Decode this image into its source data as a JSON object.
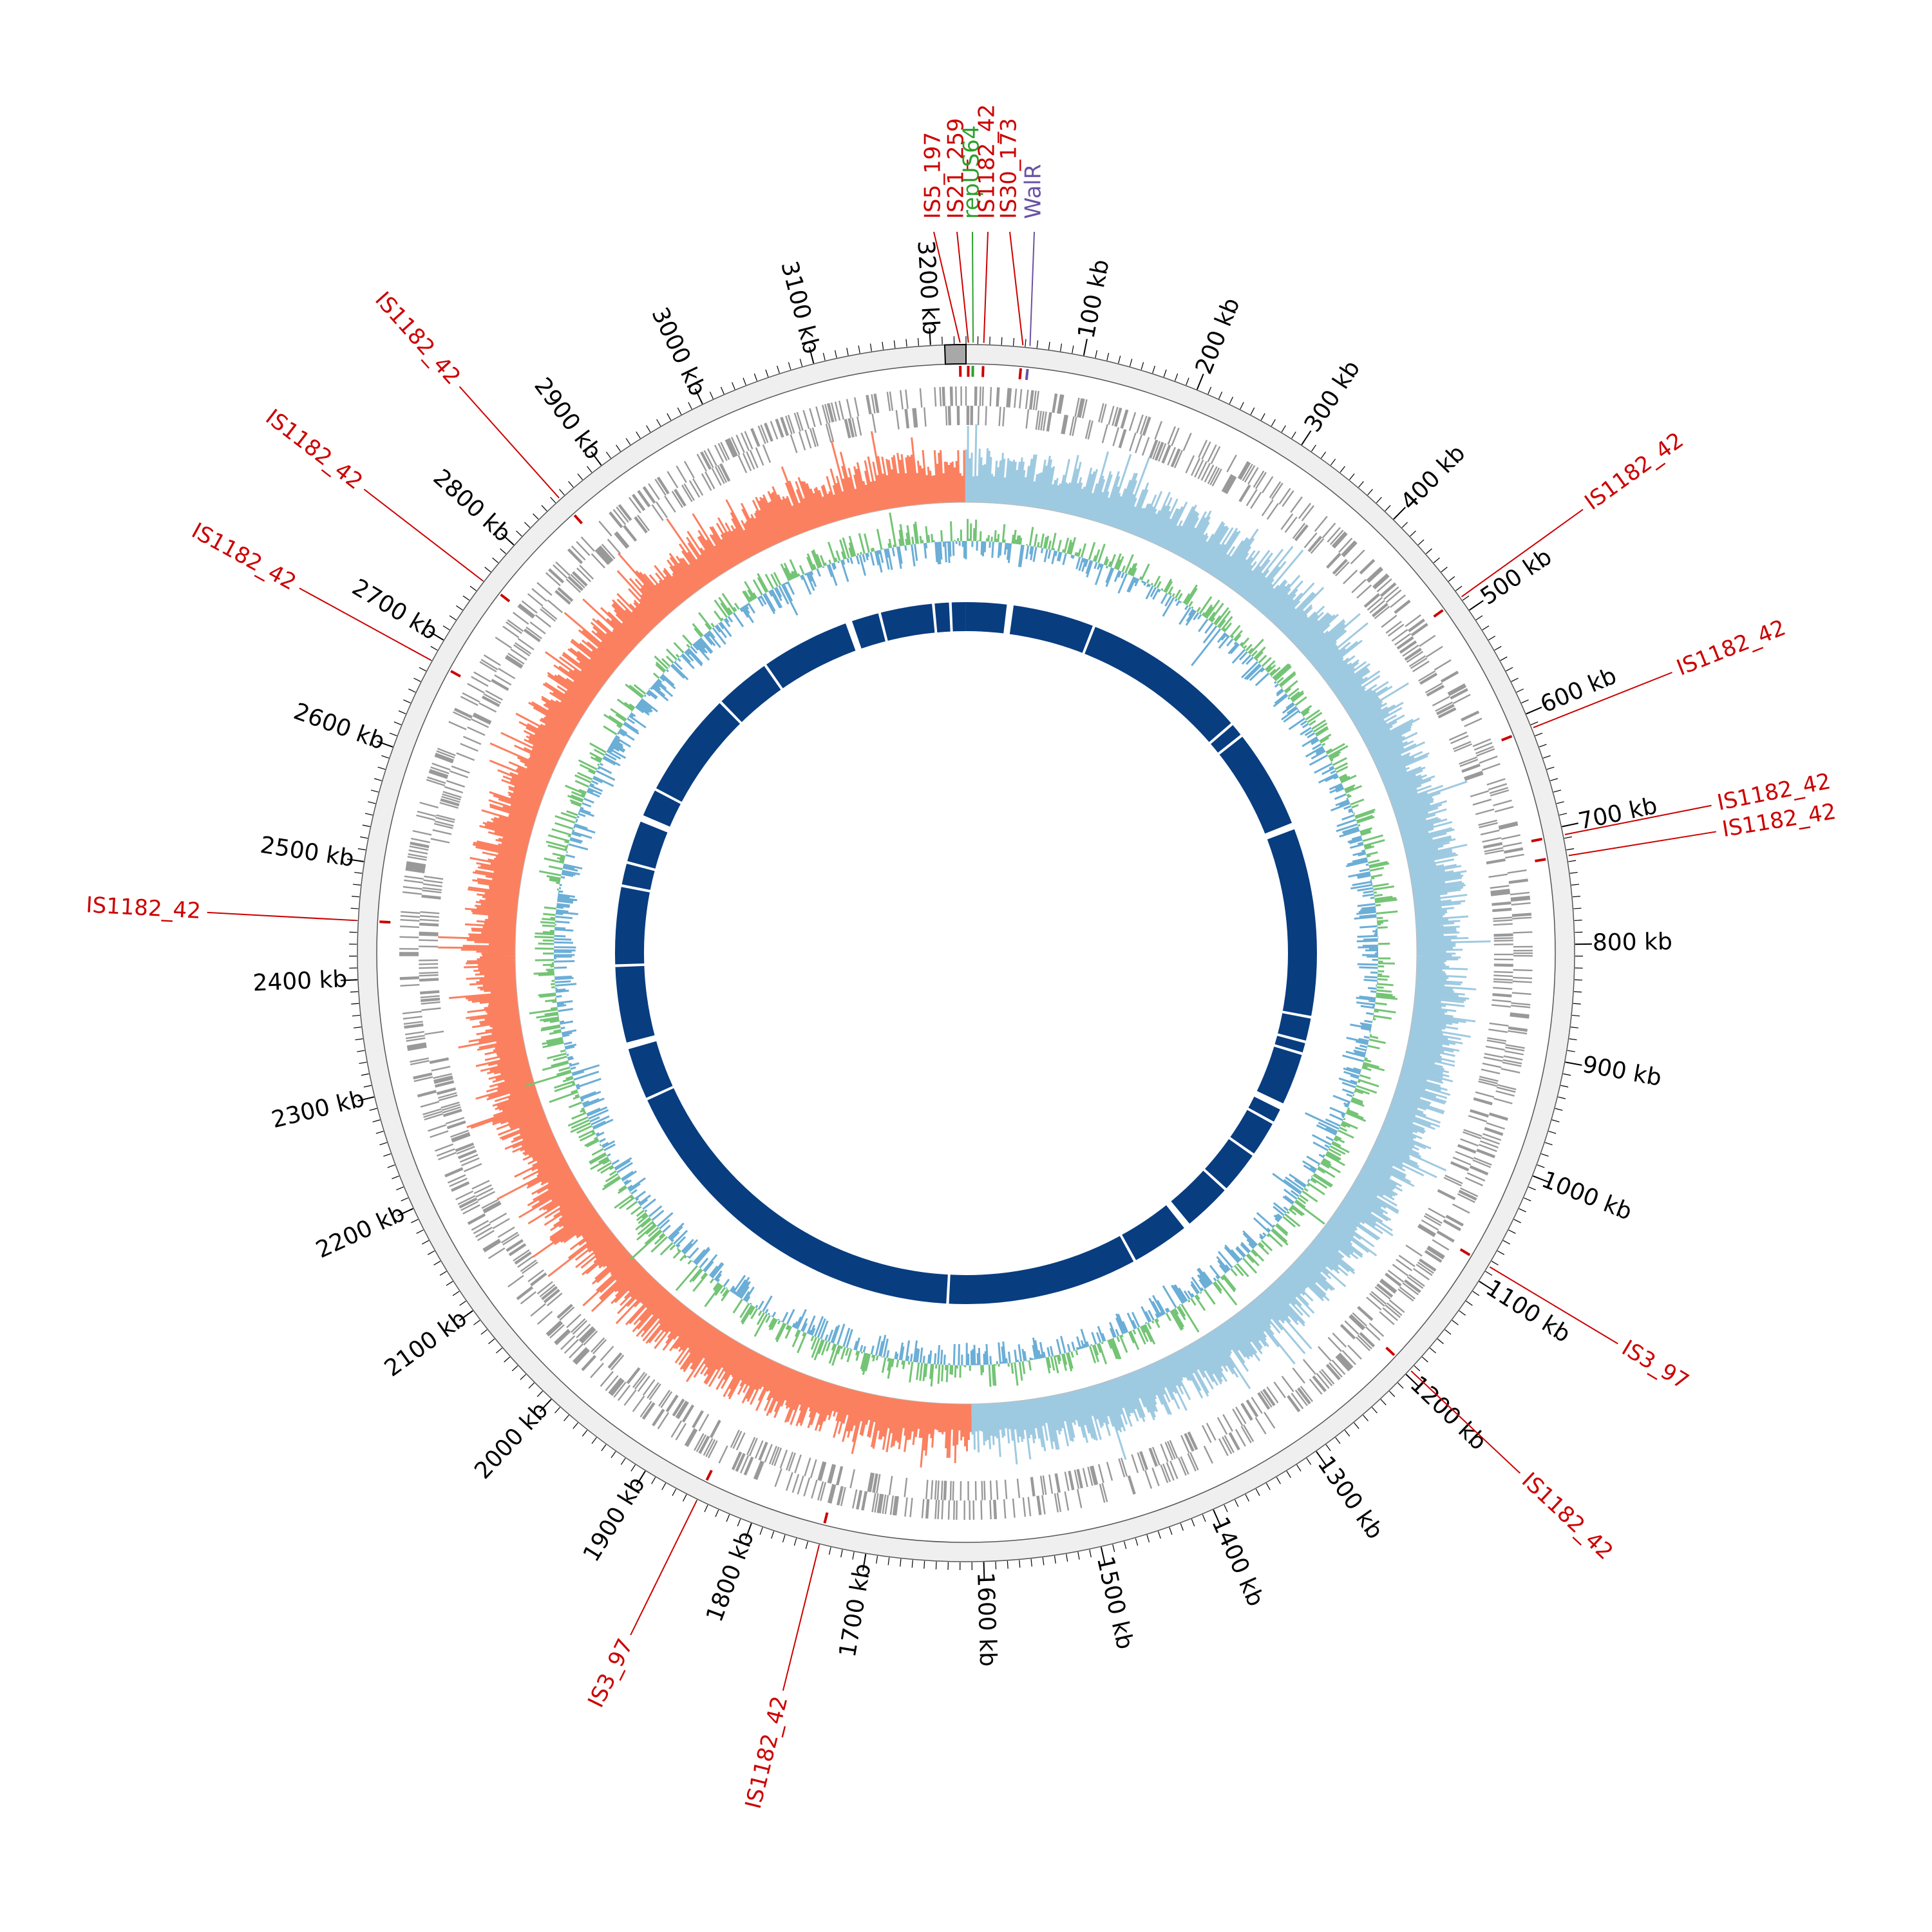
{
  "chart_data": {
    "type": "circular_genome_map",
    "genome_length_kb": 3230,
    "tick_unit": "kb",
    "major_ticks_kb": [
      100,
      200,
      300,
      400,
      500,
      600,
      700,
      800,
      900,
      1000,
      1100,
      1200,
      1300,
      1400,
      1500,
      1600,
      1700,
      1800,
      1900,
      2000,
      2100,
      2200,
      2300,
      2400,
      2500,
      2600,
      2700,
      2800,
      2900,
      3000,
      3100,
      3200
    ],
    "tick_labels": [
      "100 kb",
      "200 kb",
      "300 kb",
      "400 kb",
      "500 kb",
      "600 kb",
      "700 kb",
      "800 kb",
      "900 kb",
      "1000 kb",
      "1100 kb",
      "1200 kb",
      "1300 kb",
      "1400 kb",
      "1500 kb",
      "1600 kb",
      "1700 kb",
      "1800 kb",
      "1900 kb",
      "2000 kb",
      "2100 kb",
      "2200 kb",
      "2300 kb",
      "2400 kb",
      "2500 kb",
      "2600 kb",
      "2700 kb",
      "2800 kb",
      "2900 kb",
      "3000 kb",
      "3100 kb",
      "3200 kb"
    ],
    "minor_tick_step_kb": 10,
    "tracks": [
      {
        "name": "ideogram",
        "color": "#efefef"
      },
      {
        "name": "insertion-sequences",
        "color": "#cc0000"
      },
      {
        "name": "genes",
        "color": "#999999"
      },
      {
        "name": "gc-skew",
        "positive_color": "#9ecae1",
        "negative_color": "#fb8060"
      },
      {
        "name": "gc-content",
        "positive_color": "#74c476",
        "negative_color": "#6baed6"
      },
      {
        "name": "conserved-blocks",
        "color": "#083d80"
      }
    ],
    "features": [
      {
        "label": "IS5_197",
        "position_kb": 3225,
        "color": "#cc0000"
      },
      {
        "label": "IS21_259",
        "position_kb": 2,
        "color": "#cc0000"
      },
      {
        "label": "repUS64",
        "position_kb": 6,
        "color": "#2ca02c"
      },
      {
        "label": "IS1182_42",
        "position_kb": 15,
        "color": "#cc0000"
      },
      {
        "label": "IS30_173",
        "position_kb": 48,
        "color": "#cc0000"
      },
      {
        "label": "WalR",
        "position_kb": 54,
        "color": "#6a51a3"
      },
      {
        "label": "IS1182_42",
        "position_kb": 487,
        "color": "#cc0000"
      },
      {
        "label": "IS1182_42",
        "position_kb": 613,
        "color": "#cc0000"
      },
      {
        "label": "IS1182_42",
        "position_kb": 707,
        "color": "#cc0000"
      },
      {
        "label": "IS1182_42",
        "position_kb": 725,
        "color": "#cc0000"
      },
      {
        "label": "IS3_97",
        "position_kb": 1085,
        "color": "#cc0000"
      },
      {
        "label": "IS1182_42",
        "position_kb": 1195,
        "color": "#cc0000"
      },
      {
        "label": "IS1182_42",
        "position_kb": 1740,
        "color": "#cc0000"
      },
      {
        "label": "IS3_97",
        "position_kb": 1850,
        "color": "#cc0000"
      },
      {
        "label": "IS1182_42",
        "position_kb": 2450,
        "color": "#cc0000"
      },
      {
        "label": "IS1182_42",
        "position_kb": 2680,
        "color": "#cc0000"
      },
      {
        "label": "IS1182_42",
        "position_kb": 2760,
        "color": "#cc0000"
      },
      {
        "label": "IS1182_42",
        "position_kb": 2855,
        "color": "#cc0000"
      }
    ],
    "gc_skew_sign_change_kb": [
      0,
      1610
    ],
    "conserved_block_gaps_kb": [
      60,
      190,
      440,
      462,
      612,
      900,
      937,
      955,
      1035,
      1065,
      1120,
      1185,
      1260,
      1355,
      1640,
      2200,
      2280,
      2402,
      2520,
      2555,
      2620,
      2670,
      2830,
      2915,
      3050,
      3100,
      3180,
      3205
    ]
  }
}
